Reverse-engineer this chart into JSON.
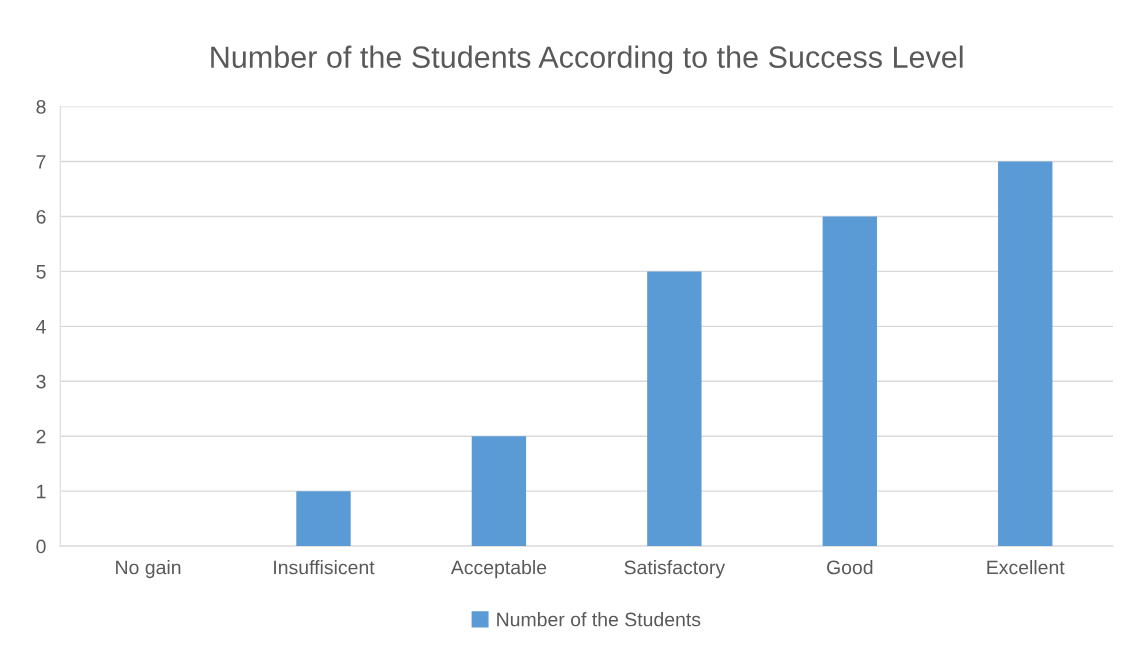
{
  "chart_data": {
    "type": "bar",
    "title": "Number of the Students According to the Success Level",
    "categories": [
      "No gain",
      "Insuffisicent",
      "Acceptable",
      "Satisfactory",
      "Good",
      "Excellent"
    ],
    "series": [
      {
        "name": "Number of the Students",
        "color": "#5b9bd5",
        "values": [
          0,
          1,
          2,
          5,
          6,
          7
        ]
      }
    ],
    "ylim": [
      0,
      8
    ],
    "yticks": [
      0,
      1,
      2,
      3,
      4,
      5,
      6,
      7,
      8
    ],
    "grid": "y",
    "legend": "bottom"
  }
}
